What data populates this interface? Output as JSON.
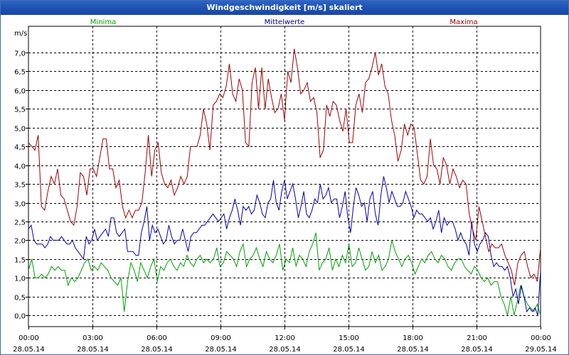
{
  "window": {
    "title": "Windgeschwindigkeit [m/s] skaliert"
  },
  "chart_data": {
    "type": "line",
    "title": "Windgeschwindigkeit [m/s] skaliert",
    "ylabel": "m/s",
    "xlabel": "",
    "ylim": [
      -0.3,
      7.7
    ],
    "xlim": [
      0,
      24
    ],
    "grid": true,
    "y_ticks": [
      "0,0",
      "0,5",
      "1,0",
      "1,5",
      "2,0",
      "2,5",
      "3,0",
      "3,5",
      "4,0",
      "4,5",
      "5,0",
      "5,5",
      "6,0",
      "6,5",
      "7,0"
    ],
    "x_ticks": [
      {
        "time": "00:00",
        "date": "28.05.14"
      },
      {
        "time": "03:00",
        "date": "28.05.14"
      },
      {
        "time": "06:00",
        "date": "28.05.14"
      },
      {
        "time": "09:00",
        "date": "28.05.14"
      },
      {
        "time": "12:00",
        "date": "28.05.14"
      },
      {
        "time": "15:00",
        "date": "28.05.14"
      },
      {
        "time": "18:00",
        "date": "28.05.14"
      },
      {
        "time": "21:00",
        "date": "28.05.14"
      },
      {
        "time": "00:00",
        "date": "29.05.14"
      }
    ],
    "series": [
      {
        "name": "Minima",
        "color": "#00a000",
        "legend_pos": "top-left",
        "values": [
          1.2,
          1.5,
          1.0,
          1.0,
          1.1,
          1.0,
          1.1,
          1.3,
          1.2,
          1.3,
          1.2,
          1.2,
          0.8,
          1.0,
          0.9,
          1.0,
          1.2,
          1.4,
          1.5,
          1.2,
          1.3,
          1.2,
          1.4,
          1.3,
          1.2,
          1.0,
          0.9,
          0.8,
          1.0,
          0.1,
          0.9,
          1.4,
          1.2,
          0.9,
          1.4,
          1.2,
          1.0,
          1.3,
          1.5,
          0.9,
          1.3,
          1.2,
          1.4,
          1.5,
          1.3,
          1.2,
          1.4,
          1.3,
          1.6,
          1.4,
          1.3,
          1.5,
          1.6,
          1.4,
          1.5,
          1.4,
          1.5,
          1.8,
          1.3,
          1.4,
          1.7,
          1.6,
          1.5,
          1.3,
          1.7,
          1.9,
          1.3,
          1.5,
          1.6,
          1.8,
          1.5,
          1.3,
          1.7,
          1.5,
          1.4,
          1.6,
          1.9,
          1.2,
          1.5,
          1.4,
          1.8,
          1.3,
          1.6,
          1.5,
          1.3,
          1.7,
          1.9,
          2.2,
          1.2,
          1.4,
          1.5,
          1.8,
          1.2,
          1.5,
          1.3,
          1.6,
          1.4,
          1.9,
          1.3,
          1.4,
          1.8,
          1.5,
          1.2,
          1.3,
          1.7,
          1.4,
          1.6,
          1.2,
          1.3,
          1.5,
          2.0,
          1.7,
          1.5,
          1.3,
          1.5,
          1.6,
          1.4,
          1.1,
          1.3,
          1.5,
          1.4,
          1.6,
          1.7,
          1.5,
          1.4,
          1.6,
          1.5,
          1.3,
          1.2,
          1.4,
          1.5,
          1.5,
          1.3,
          1.2,
          1.1,
          1.3,
          1.2,
          1.0,
          0.9,
          1.0,
          0.8,
          0.9,
          0.9,
          0.5,
          0.3,
          0.0,
          0.5,
          0.0,
          0.4,
          0.8,
          0.5,
          0.3,
          0.2,
          0.1,
          0.3,
          0.0
        ]
      },
      {
        "name": "Mittelwerte",
        "color": "#0000b0",
        "legend_pos": "top-center",
        "values": [
          2.3,
          2.4,
          2.0,
          1.9,
          1.9,
          1.9,
          1.8,
          1.9,
          2.1,
          2.0,
          2.0,
          2.0,
          2.1,
          2.0,
          1.9,
          1.9,
          2.0,
          1.8,
          1.7,
          1.6,
          1.5,
          2.1,
          1.9,
          2.0,
          2.3,
          2.0,
          2.1,
          2.2,
          2.3,
          2.1,
          2.6,
          2.6,
          2.2,
          2.1,
          2.2,
          2.3,
          1.7,
          1.7,
          1.7,
          1.6,
          1.6,
          2.2,
          2.5,
          2.9,
          2.0,
          2.4,
          2.2,
          2.3,
          2.1,
          1.9,
          2.0,
          2.4,
          2.1,
          1.9,
          2.0,
          2.0,
          2.3,
          2.0,
          1.7,
          2.1,
          2.2,
          2.2,
          2.3,
          2.4,
          2.4,
          2.5,
          2.6,
          2.7,
          2.6,
          2.5,
          2.6,
          2.7,
          2.3,
          2.6,
          2.8,
          3.1,
          2.8,
          2.4,
          2.9,
          2.8,
          2.9,
          2.7,
          2.8,
          3.2,
          3.0,
          2.7,
          2.6,
          3.0,
          3.1,
          3.6,
          3.0,
          2.8,
          3.3,
          3.6,
          3.1,
          3.3,
          3.5,
          3.1,
          2.6,
          2.9,
          3.3,
          2.7,
          2.6,
          2.8,
          3.1,
          3.0,
          3.5,
          3.1,
          3.2,
          3.4,
          3.0,
          3.1,
          3.1,
          2.6,
          2.9,
          3.3,
          2.6,
          2.2,
          2.9,
          3.4,
          3.2,
          2.9,
          3.0,
          2.5,
          3.1,
          3.3,
          2.7,
          2.4,
          3.2,
          3.7,
          3.4,
          3.0,
          3.3,
          3.1,
          2.9,
          2.9,
          3.0,
          3.3,
          3.1,
          2.9,
          2.6,
          2.8,
          2.7,
          2.7,
          2.6,
          2.5,
          2.6,
          2.3,
          2.5,
          2.8,
          2.2,
          2.6,
          2.4,
          2.5,
          2.5,
          2.3,
          2.0,
          2.2,
          2.0,
          1.9,
          1.6,
          2.5,
          1.9,
          1.7,
          1.9,
          2.0,
          2.2,
          2.1,
          1.6,
          1.3,
          1.4,
          1.3,
          1.3,
          1.2,
          1.3,
          1.0,
          0.5,
          0.7,
          0.3,
          0.8,
          0.5,
          0.1,
          0.2,
          0.1,
          0.2,
          0.0,
          1.2
        ]
      },
      {
        "name": "Maxima",
        "color": "#a00000",
        "legend_pos": "top-right",
        "values": [
          4.6,
          4.5,
          4.4,
          4.8,
          2.9,
          2.8,
          3.3,
          3.7,
          3.5,
          3.9,
          3.2,
          3.1,
          2.8,
          2.5,
          2.4,
          2.9,
          3.8,
          3.7,
          3.2,
          3.9,
          3.9,
          3.7,
          4.2,
          4.7,
          4.7,
          3.9,
          3.9,
          3.4,
          3.6,
          2.9,
          2.6,
          2.8,
          2.6,
          2.8,
          2.8,
          3.0,
          3.8,
          4.8,
          3.7,
          4.4,
          4.6,
          3.8,
          3.5,
          3.4,
          3.6,
          3.2,
          3.4,
          3.7,
          3.5,
          3.7,
          4.5,
          4.5,
          4.5,
          4.8,
          5.5,
          5.1,
          4.4,
          5.6,
          5.7,
          5.9,
          5.8,
          6.1,
          6.7,
          5.9,
          5.7,
          6.3,
          6.0,
          4.6,
          4.5,
          6.2,
          6.6,
          5.5,
          6.6,
          5.5,
          6.3,
          5.8,
          5.4,
          5.5,
          5.9,
          5.2,
          6.5,
          6.2,
          7.1,
          6.6,
          5.9,
          6.0,
          6.2,
          5.7,
          5.8,
          5.4,
          4.2,
          4.4,
          5.6,
          5.3,
          5.7,
          5.6,
          5.2,
          4.9,
          5.5,
          4.6,
          4.6,
          5.6,
          5.9,
          5.4,
          6.2,
          6.3,
          6.6,
          7.0,
          6.4,
          6.7,
          6.1,
          5.9,
          5.2,
          4.8,
          4.1,
          4.4,
          5.1,
          4.8,
          5.1,
          5.0,
          4.3,
          3.6,
          3.5,
          3.7,
          4.7,
          4.0,
          3.9,
          3.5,
          4.2,
          4.0,
          3.5,
          3.9,
          3.7,
          3.4,
          3.6,
          3.5,
          2.7,
          2.3,
          2.0,
          2.9,
          2.5,
          2.1,
          1.7,
          1.9,
          1.8,
          1.8,
          1.9,
          1.6,
          1.4,
          1.2,
          0.8,
          1.4,
          1.6,
          1.7,
          1.3,
          1.0,
          1.1,
          0.9,
          1.8
        ]
      }
    ]
  }
}
